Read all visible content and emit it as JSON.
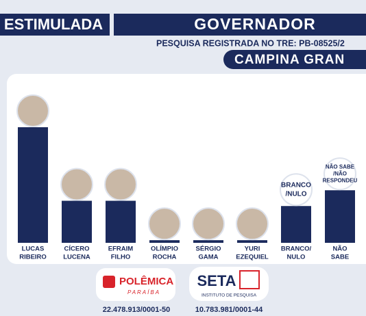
{
  "chart_data": {
    "type": "bar",
    "header": {
      "left": "ESTIMULADA",
      "title": "GOVERNADOR",
      "subtitle": "PESQUISA REGISTRADA NO TRE: PB-08525/2",
      "city": "CAMPINA GRAN"
    },
    "categories": [
      [
        "LUCAS",
        "RIBEIRO"
      ],
      [
        "CÍCERO",
        "LUCENA"
      ],
      [
        "EFRAIM",
        "FILHO"
      ],
      [
        "OLÍMPIO",
        "ROCHA"
      ],
      [
        "SÉRGIO",
        "GAMA"
      ],
      [
        "YURI",
        "EZEQUIEL"
      ],
      [
        "BRANCO/",
        "NULO"
      ],
      [
        "NÃO",
        "SABE"
      ]
    ],
    "values": [
      44,
      16,
      16,
      1,
      1,
      1,
      14,
      20
    ],
    "bubble_labels": [
      null,
      null,
      null,
      null,
      null,
      null,
      [
        "BRANCO",
        "/NULO"
      ],
      [
        "NÃO SABE",
        "/NÃO",
        "RESPONDEU"
      ]
    ],
    "color": "#1b2a5c",
    "footer": {
      "left_logo": "POLÊMICA",
      "left_logo_sub": "PARAÍBA",
      "left_id": "22.478.913/0001-50",
      "right_logo": "SETA",
      "right_logo_sub": "INSTITUTO DE PESQUISA",
      "right_id": "10.783.981/0001-44"
    }
  }
}
